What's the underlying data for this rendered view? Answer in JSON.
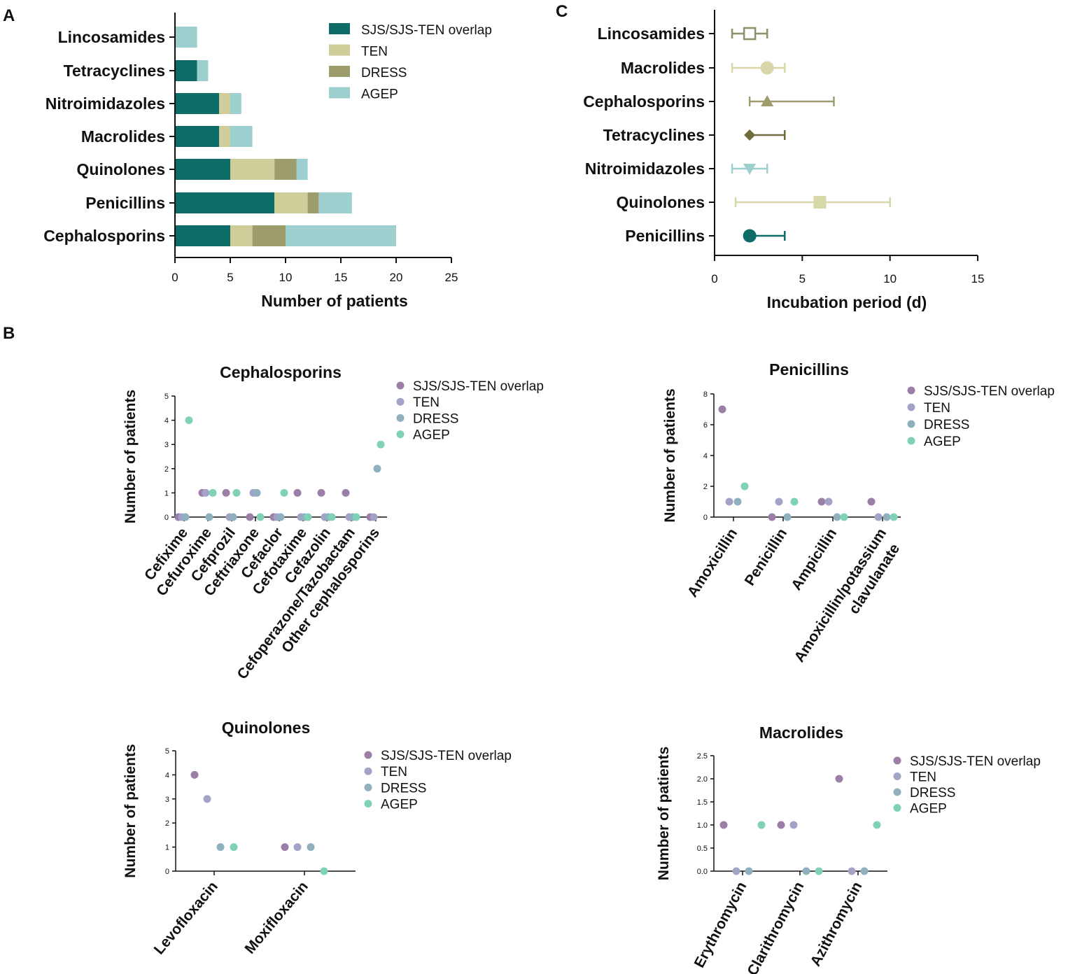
{
  "chart_data": [
    {
      "id": "A",
      "panel_label": "A",
      "type": "bar",
      "orientation": "horizontal",
      "stacked": true,
      "categories": [
        "Lincosamides",
        "Tetracyclines",
        "Nitroimidazoles",
        "Macrolides",
        "Quinolones",
        "Penicillins",
        "Cephalosporins"
      ],
      "series": [
        {
          "name": "SJS/SJS-TEN overlap",
          "color": "#0d6b68",
          "values": [
            0,
            2,
            4,
            4,
            5,
            9,
            5
          ]
        },
        {
          "name": "TEN",
          "color": "#cfcd9a",
          "values": [
            0,
            0,
            1,
            1,
            4,
            3,
            2
          ]
        },
        {
          "name": "DRESS",
          "color": "#9c9c6c",
          "values": [
            0,
            0,
            0,
            0,
            2,
            1,
            3
          ]
        },
        {
          "name": "AGEP",
          "color": "#9dcfcf",
          "values": [
            2,
            1,
            1,
            2,
            1,
            3,
            10
          ]
        }
      ],
      "xlabel": "Number of patients",
      "xlim": [
        0,
        25
      ],
      "xticks": [
        0,
        5,
        10,
        15,
        20,
        25
      ],
      "legend_position": "top-right"
    },
    {
      "id": "C",
      "panel_label": "C",
      "type": "scatter",
      "subtype": "point-with-error-bars",
      "categories": [
        "Lincosamides",
        "Macrolides",
        "Cephalosporins",
        "Tetracyclines",
        "Nitroimidazoles",
        "Quinolones",
        "Penicillins"
      ],
      "points": [
        {
          "label": "Lincosamides",
          "value": 2,
          "low": 1,
          "high": 3,
          "marker": "open-square",
          "color": "#8f8f6a"
        },
        {
          "label": "Macrolides",
          "value": 3,
          "low": 1,
          "high": 4,
          "marker": "circle",
          "color": "#d7d7a8"
        },
        {
          "label": "Cephalosporins",
          "value": 3,
          "low": 2,
          "high": 6.8,
          "marker": "triangle-up",
          "color": "#9c9c6c"
        },
        {
          "label": "Tetracyclines",
          "value": 2,
          "low": 2,
          "high": 4,
          "marker": "diamond",
          "color": "#6f6a3c"
        },
        {
          "label": "Nitroimidazoles",
          "value": 2,
          "low": 1,
          "high": 3,
          "marker": "triangle-down",
          "color": "#9dcfcf"
        },
        {
          "label": "Quinolones",
          "value": 6,
          "low": 1.2,
          "high": 10,
          "marker": "square",
          "color": "#d7d7a8"
        },
        {
          "label": "Penicillins",
          "value": 2,
          "low": 2,
          "high": 4,
          "marker": "circle",
          "color": "#0d6b68"
        }
      ],
      "xlabel": "Incubation period (d)",
      "xlim": [
        0,
        15
      ],
      "xticks": [
        0,
        5,
        10,
        15
      ]
    },
    {
      "id": "B1",
      "panel_label": "B",
      "type": "scatter",
      "title": "Cephalosporins",
      "ylabel": "Number of patients",
      "ylim": [
        0,
        5
      ],
      "yticks": [
        0,
        1,
        2,
        3,
        4,
        5
      ],
      "categories": [
        "Cefixime",
        "Cefuroxime",
        "Cefprozil",
        "Ceftriaxone",
        "Cefaclor",
        "Cefotaxime",
        "Cefazolin",
        "Cefoperazone/Tazobactam",
        "Other cephalosporins"
      ],
      "series": [
        {
          "name": "SJS/SJS-TEN overlap",
          "color": "#9b7fa6",
          "values": [
            0,
            1,
            1,
            0,
            0,
            1,
            1,
            1,
            0
          ]
        },
        {
          "name": "TEN",
          "color": "#a3a3c8",
          "values": [
            0,
            1,
            0,
            1,
            0,
            0,
            0,
            0,
            0
          ]
        },
        {
          "name": "DRESS",
          "color": "#8fb0bf",
          "values": [
            0,
            0,
            0,
            1,
            0,
            0,
            0,
            0,
            2
          ]
        },
        {
          "name": "AGEP",
          "color": "#7fd1b7",
          "values": [
            4,
            1,
            1,
            0,
            1,
            0,
            0,
            0,
            3
          ]
        }
      ],
      "legend_position": "top-right"
    },
    {
      "id": "B2",
      "type": "scatter",
      "title": "Penicillins",
      "ylabel": "Number of patients",
      "ylim": [
        0,
        8
      ],
      "yticks": [
        0,
        2,
        4,
        6,
        8
      ],
      "categories": [
        "Amoxicillin",
        "Penicillin",
        "Ampicillin",
        "Amoxicillin/potassium clavulanate"
      ],
      "category_lines": [
        [
          "Amoxicillin"
        ],
        [
          "Penicillin"
        ],
        [
          "Ampicillin"
        ],
        [
          "Amoxicillin/potassium",
          "clavulanate"
        ]
      ],
      "series": [
        {
          "name": "SJS/SJS-TEN overlap",
          "color": "#9b7fa6",
          "values": [
            7,
            0,
            1,
            1
          ]
        },
        {
          "name": "TEN",
          "color": "#a3a3c8",
          "values": [
            1,
            1,
            1,
            0
          ]
        },
        {
          "name": "DRESS",
          "color": "#8fb0bf",
          "values": [
            1,
            0,
            0,
            0
          ]
        },
        {
          "name": "AGEP",
          "color": "#7fd1b7",
          "values": [
            2,
            1,
            0,
            0
          ]
        }
      ],
      "legend_position": "top-right"
    },
    {
      "id": "B3",
      "type": "scatter",
      "title": "Quinolones",
      "ylabel": "Number of patients",
      "ylim": [
        0,
        5
      ],
      "yticks": [
        0,
        1,
        2,
        3,
        4,
        5
      ],
      "categories": [
        "Levofloxacin",
        "Moxifloxacin"
      ],
      "series": [
        {
          "name": "SJS/SJS-TEN overlap",
          "color": "#9b7fa6",
          "values": [
            4,
            1
          ]
        },
        {
          "name": "TEN",
          "color": "#a3a3c8",
          "values": [
            3,
            1
          ]
        },
        {
          "name": "DRESS",
          "color": "#8fb0bf",
          "values": [
            1,
            1
          ]
        },
        {
          "name": "AGEP",
          "color": "#7fd1b7",
          "values": [
            1,
            0
          ]
        }
      ],
      "legend_position": "top-right"
    },
    {
      "id": "B4",
      "type": "scatter",
      "title": "Macrolides",
      "ylabel": "Number of patients",
      "ylim": [
        0,
        2.5
      ],
      "yticks": [
        0.0,
        0.5,
        1.0,
        1.5,
        2.0,
        2.5
      ],
      "ytick_labels": [
        "0.0",
        "0.5",
        "1.0",
        "1.5",
        "2.0",
        "2.5"
      ],
      "categories": [
        "Erythromycin",
        "Clarithromycin",
        "Azithromycin"
      ],
      "series": [
        {
          "name": "SJS/SJS-TEN overlap",
          "color": "#9b7fa6",
          "values": [
            1,
            1,
            2
          ]
        },
        {
          "name": "TEN",
          "color": "#a3a3c8",
          "values": [
            0,
            1,
            0
          ]
        },
        {
          "name": "DRESS",
          "color": "#8fb0bf",
          "values": [
            0,
            0,
            0
          ]
        },
        {
          "name": "AGEP",
          "color": "#7fd1b7",
          "values": [
            1,
            0,
            1
          ]
        }
      ],
      "legend_position": "top-right"
    }
  ]
}
